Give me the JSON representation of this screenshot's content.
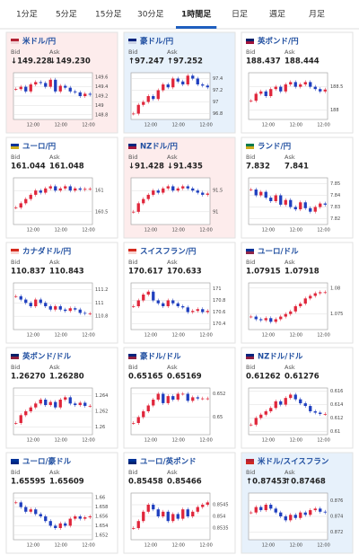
{
  "tabs": [
    {
      "label": "1分足"
    },
    {
      "label": "5分足"
    },
    {
      "label": "15分足"
    },
    {
      "label": "30分足"
    },
    {
      "label": "1時間足",
      "active": true
    },
    {
      "label": "日足"
    },
    {
      "label": "週足"
    },
    {
      "label": "月足"
    }
  ],
  "cards": [
    {
      "title": "米ドル/円",
      "flag": [
        "#b22234",
        "#fff"
      ],
      "bid_label": "Bid",
      "ask_label": "Ask",
      "bid": "↓149.228",
      "ask": "↓149.230",
      "trend": "down",
      "chart": {
        "type": "candlestick",
        "closes": [
          149.35,
          149.4,
          149.3,
          149.45,
          149.5,
          149.48,
          149.4,
          149.55,
          149.3,
          149.42,
          149.38,
          149.3,
          149.28,
          149.2,
          149.25,
          149.23
        ],
        "ylim": [
          148.7,
          149.7
        ],
        "yticks": [
          148.8,
          149,
          149.2,
          149.4,
          149.6
        ],
        "xlabels": [
          "12:00",
          "12:00",
          "12:00"
        ]
      }
    },
    {
      "title": "豪ドル/円",
      "flag": [
        "#00247d",
        "#fff"
      ],
      "bid_label": "Bid",
      "ask_label": "Ask",
      "bid": "↑97.247",
      "ask": "↑97.252",
      "trend": "up",
      "chart": {
        "type": "candlestick",
        "closes": [
          96.8,
          96.95,
          97.0,
          97.1,
          97.05,
          97.2,
          97.3,
          97.25,
          97.4,
          97.35,
          97.3,
          97.45,
          97.4,
          97.3,
          97.28,
          97.25
        ],
        "ylim": [
          96.7,
          97.5
        ],
        "yticks": [
          96.8,
          97,
          97.2,
          97.4
        ],
        "xlabels": [
          "12:00",
          "12:00",
          "12:00"
        ]
      }
    },
    {
      "title": "英ポンド/円",
      "flag": [
        "#012169",
        "#c8102e"
      ],
      "bid_label": "Bid",
      "ask_label": "Ask",
      "bid": "188.437",
      "ask": "188.444",
      "chart": {
        "type": "candlestick",
        "closes": [
          188.2,
          188.35,
          188.4,
          188.3,
          188.45,
          188.5,
          188.4,
          188.55,
          188.6,
          188.5,
          188.55,
          188.6,
          188.5,
          188.45,
          188.4,
          188.44
        ],
        "ylim": [
          187.8,
          188.8
        ],
        "yticks": [
          188,
          188.5
        ],
        "xlabels": [
          "12:00",
          "12:00",
          "12:00"
        ]
      }
    },
    {
      "title": "ユーロ/円",
      "flag": [
        "#003399",
        "#ffcc00"
      ],
      "bid_label": "Bid",
      "ask_label": "Ask",
      "bid": "161.044",
      "ask": "161.048",
      "chart": {
        "type": "candlestick",
        "closes": [
          160.6,
          160.7,
          160.8,
          160.9,
          161.0,
          160.95,
          161.05,
          161.1,
          161.0,
          161.05,
          161.1,
          161.0,
          161.05,
          161.02,
          161.04,
          161.04
        ],
        "ylim": [
          160.2,
          161.3
        ],
        "yticks": [
          160.5,
          161
        ],
        "xlabels": [
          "12:00",
          "12:00",
          "12:00"
        ]
      }
    },
    {
      "title": "NZドル/円",
      "flag": [
        "#00247d",
        "#cc142b"
      ],
      "bid_label": "Bid",
      "ask_label": "Ask",
      "bid": "↓91.428",
      "ask": "↓91.435",
      "trend": "down",
      "chart": {
        "type": "candlestick",
        "closes": [
          91.0,
          91.2,
          91.3,
          91.4,
          91.5,
          91.45,
          91.55,
          91.6,
          91.5,
          91.55,
          91.6,
          91.55,
          91.5,
          91.45,
          91.4,
          91.43
        ],
        "ylim": [
          90.7,
          91.8
        ],
        "yticks": [
          91,
          91.5
        ],
        "xlabels": [
          "12:00",
          "12:00",
          "12:00"
        ]
      }
    },
    {
      "title": "ランド/円",
      "flag": [
        "#007a4d",
        "#ffb612"
      ],
      "bid_label": "Bid",
      "ask_label": "Ask",
      "bid": "7.832",
      "ask": "7.841",
      "chart": {
        "type": "candlestick",
        "closes": [
          7.845,
          7.84,
          7.843,
          7.838,
          7.835,
          7.84,
          7.832,
          7.836,
          7.83,
          7.828,
          7.834,
          7.829,
          7.826,
          7.83,
          7.833,
          7.832
        ],
        "ylim": [
          7.815,
          7.855
        ],
        "yticks": [
          7.82,
          7.83,
          7.84,
          7.85
        ],
        "xlabels": [
          "12:00",
          "12:00",
          "12:00"
        ]
      }
    },
    {
      "title": "カナダドル/円",
      "flag": [
        "#d52b1e",
        "#fff"
      ],
      "bid_label": "Bid",
      "ask_label": "Ask",
      "bid": "110.837",
      "ask": "110.843",
      "chart": {
        "type": "candlestick",
        "closes": [
          111.1,
          111.05,
          111.0,
          110.95,
          111.05,
          111.0,
          110.95,
          110.9,
          110.95,
          110.9,
          110.88,
          110.92,
          110.9,
          110.85,
          110.84,
          110.84
        ],
        "ylim": [
          110.6,
          111.3
        ],
        "yticks": [
          110.8,
          111,
          111.2
        ],
        "xlabels": [
          "12:00",
          "12:00",
          "12:00"
        ]
      }
    },
    {
      "title": "スイスフラン/円",
      "flag": [
        "#d52b1e",
        "#fff"
      ],
      "bid_label": "Bid",
      "ask_label": "Ask",
      "bid": "170.617",
      "ask": "170.633",
      "chart": {
        "type": "candlestick",
        "closes": [
          170.7,
          170.8,
          170.9,
          170.95,
          170.8,
          170.75,
          170.7,
          170.8,
          170.75,
          170.7,
          170.68,
          170.6,
          170.62,
          170.65,
          170.6,
          170.62
        ],
        "ylim": [
          170.3,
          171.1
        ],
        "yticks": [
          170.4,
          170.6,
          170.8,
          171
        ],
        "xlabels": [
          "12:00",
          "12:00",
          "12:00"
        ]
      }
    },
    {
      "title": "ユーロ/ドル",
      "flag": [
        "#003399",
        "#b22234"
      ],
      "bid_label": "Bid",
      "ask_label": "Ask",
      "bid": "1.07915",
      "ask": "1.07918",
      "chart": {
        "type": "candlestick",
        "closes": [
          1.0745,
          1.074,
          1.0738,
          1.0742,
          1.0735,
          1.074,
          1.0745,
          1.075,
          1.0755,
          1.0765,
          1.077,
          1.078,
          1.0785,
          1.079,
          1.0792,
          1.0792
        ],
        "ylim": [
          1.072,
          1.081
        ],
        "yticks": [
          1.075,
          1.08
        ],
        "xlabels": [
          "12:00",
          "12:00",
          "12:00"
        ]
      }
    },
    {
      "title": "英ポンド/ドル",
      "flag": [
        "#012169",
        "#b22234"
      ],
      "bid_label": "Bid",
      "ask_label": "Ask",
      "bid": "1.26270",
      "ask": "1.26280",
      "chart": {
        "type": "candlestick",
        "closes": [
          1.2605,
          1.2615,
          1.262,
          1.2625,
          1.263,
          1.2635,
          1.2628,
          1.2632,
          1.2625,
          1.2635,
          1.2638,
          1.263,
          1.2628,
          1.2631,
          1.2627,
          1.2627
        ],
        "ylim": [
          1.259,
          1.265
        ],
        "yticks": [
          1.26,
          1.262,
          1.264
        ],
        "xlabels": [
          "12:00",
          "12:00",
          "12:00"
        ]
      }
    },
    {
      "title": "豪ドル/ドル",
      "flag": [
        "#00247d",
        "#b22234"
      ],
      "bid_label": "Bid",
      "ask_label": "Ask",
      "bid": "0.65165",
      "ask": "0.65169",
      "chart": {
        "type": "candlestick",
        "closes": [
          0.6495,
          0.65,
          0.6505,
          0.651,
          0.6515,
          0.652,
          0.6512,
          0.6518,
          0.6515,
          0.652,
          0.652,
          0.6514,
          0.6517,
          0.6516,
          0.6516,
          0.6516
        ],
        "ylim": [
          0.6485,
          0.6525
        ],
        "yticks": [
          0.65,
          0.652
        ],
        "xlabels": [
          "12:00",
          "12:00",
          "12:00"
        ]
      }
    },
    {
      "title": "NZドル/ドル",
      "flag": [
        "#00247d",
        "#b22234"
      ],
      "bid_label": "Bid",
      "ask_label": "Ask",
      "bid": "0.61262",
      "ask": "0.61276",
      "chart": {
        "type": "candlestick",
        "closes": [
          0.611,
          0.612,
          0.6125,
          0.613,
          0.6135,
          0.6145,
          0.614,
          0.615,
          0.6155,
          0.6148,
          0.6142,
          0.6138,
          0.613,
          0.6128,
          0.6126,
          0.6126
        ],
        "ylim": [
          0.6095,
          0.6165
        ],
        "yticks": [
          0.61,
          0.612,
          0.614,
          0.616
        ],
        "xlabels": [
          "12:00",
          "12:00",
          "12:00"
        ]
      }
    },
    {
      "title": "ユーロ/豪ドル",
      "flag": [
        "#003399",
        "#00247d"
      ],
      "bid_label": "Bid",
      "ask_label": "Ask",
      "bid": "1.65595",
      "ask": "1.65609",
      "chart": {
        "type": "candlestick",
        "closes": [
          1.659,
          1.658,
          1.657,
          1.6575,
          1.6565,
          1.656,
          1.655,
          1.654,
          1.6535,
          1.6545,
          1.654,
          1.6555,
          1.656,
          1.6555,
          1.6558,
          1.656
        ],
        "ylim": [
          1.651,
          1.661
        ],
        "yticks": [
          1.652,
          1.654,
          1.656,
          1.658,
          1.66
        ],
        "xlabels": [
          "12:00",
          "12:00",
          "12:00"
        ]
      }
    },
    {
      "title": "ユーロ/英ポンド",
      "flag": [
        "#003399",
        "#012169"
      ],
      "bid_label": "Bid",
      "ask_label": "Ask",
      "bid": "0.85458",
      "ask": "0.85466",
      "chart": {
        "type": "candlestick",
        "closes": [
          0.8535,
          0.8538,
          0.8542,
          0.8545,
          0.8543,
          0.854,
          0.8542,
          0.8538,
          0.8541,
          0.8539,
          0.8543,
          0.854,
          0.8542,
          0.8544,
          0.8545,
          0.8546
        ],
        "ylim": [
          0.853,
          0.855
        ],
        "yticks": [
          0.8535,
          0.854,
          0.8545
        ],
        "xlabels": [
          "12:00",
          "12:00",
          "12:00"
        ]
      }
    },
    {
      "title": "米ドル/スイスフラン",
      "flag": [
        "#b22234",
        "#d52b1e"
      ],
      "bid_label": "Bid",
      "ask_label": "Ask",
      "bid": "↑0.87453",
      "ask": "↑0.87468",
      "trend": "up",
      "chart": {
        "type": "candlestick",
        "closes": [
          0.8745,
          0.8752,
          0.8748,
          0.8755,
          0.875,
          0.8745,
          0.874,
          0.8735,
          0.8742,
          0.8738,
          0.8745,
          0.8742,
          0.8748,
          0.875,
          0.8746,
          0.8745
        ],
        "ylim": [
          0.871,
          0.877
        ],
        "yticks": [
          0.872,
          0.874,
          0.876
        ],
        "xlabels": [
          "12:00",
          "12:00",
          "12:00"
        ]
      }
    }
  ]
}
